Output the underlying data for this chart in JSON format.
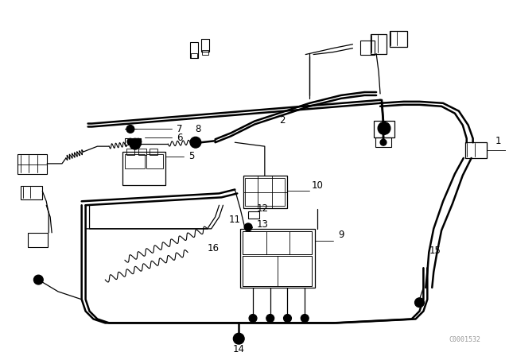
{
  "bg_color": "#ffffff",
  "line_color": "#000000",
  "fig_width": 6.4,
  "fig_height": 4.48,
  "dpi": 100,
  "watermark": "C0001532"
}
